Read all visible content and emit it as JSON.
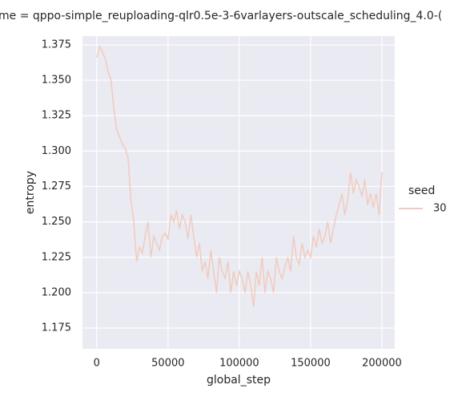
{
  "chart_data": {
    "type": "line",
    "title": "me = qppo-simple_reuploading-qlr0.5e-3-6varlayers-outscale_scheduling_4.0-(",
    "x_label": "global_step",
    "y_label": "entropy",
    "legend_title": "seed",
    "legend": "right",
    "grid": true,
    "x": [
      0,
      2000,
      4000,
      6000,
      8000,
      10000,
      12000,
      14000,
      16000,
      18000,
      20000,
      22000,
      24000,
      26000,
      28000,
      30000,
      32000,
      34000,
      36000,
      38000,
      40000,
      42000,
      44000,
      46000,
      48000,
      50000,
      52000,
      54000,
      56000,
      58000,
      60000,
      62000,
      64000,
      66000,
      68000,
      70000,
      72000,
      74000,
      76000,
      78000,
      80000,
      82000,
      84000,
      86000,
      88000,
      90000,
      92000,
      94000,
      96000,
      98000,
      100000,
      102000,
      104000,
      106000,
      108000,
      110000,
      112000,
      114000,
      116000,
      118000,
      120000,
      122000,
      124000,
      126000,
      128000,
      130000,
      132000,
      134000,
      136000,
      138000,
      140000,
      142000,
      144000,
      146000,
      148000,
      150000,
      152000,
      154000,
      156000,
      158000,
      160000,
      162000,
      164000,
      166000,
      168000,
      170000,
      172000,
      174000,
      176000,
      178000,
      180000,
      182000,
      184000,
      186000,
      188000,
      190000,
      192000,
      194000,
      196000,
      198000,
      200000
    ],
    "series": [
      {
        "name": "30",
        "color": "#f1cbbd",
        "values": [
          1.366,
          1.374,
          1.37,
          1.365,
          1.356,
          1.35,
          1.33,
          1.315,
          1.31,
          1.305,
          1.302,
          1.295,
          1.265,
          1.25,
          1.222,
          1.232,
          1.228,
          1.24,
          1.25,
          1.225,
          1.24,
          1.235,
          1.23,
          1.24,
          1.242,
          1.238,
          1.255,
          1.25,
          1.258,
          1.245,
          1.255,
          1.25,
          1.238,
          1.255,
          1.24,
          1.225,
          1.235,
          1.215,
          1.222,
          1.21,
          1.23,
          1.215,
          1.2,
          1.225,
          1.215,
          1.21,
          1.222,
          1.2,
          1.215,
          1.205,
          1.215,
          1.21,
          1.2,
          1.215,
          1.205,
          1.19,
          1.215,
          1.205,
          1.225,
          1.2,
          1.215,
          1.21,
          1.2,
          1.225,
          1.215,
          1.21,
          1.218,
          1.225,
          1.215,
          1.24,
          1.225,
          1.22,
          1.235,
          1.225,
          1.23,
          1.225,
          1.24,
          1.232,
          1.245,
          1.235,
          1.24,
          1.25,
          1.235,
          1.245,
          1.255,
          1.262,
          1.27,
          1.255,
          1.265,
          1.285,
          1.27,
          1.28,
          1.275,
          1.268,
          1.28,
          1.262,
          1.27,
          1.26,
          1.27,
          1.255,
          1.285
        ]
      }
    ],
    "xlim": [
      -10000,
      209000
    ],
    "xticks": [
      0,
      50000,
      100000,
      150000,
      200000
    ],
    "ylim": [
      1.1603,
      1.3812
    ],
    "yticks": [
      1.175,
      {
        "value": 1.2,
        "label": "1.200"
      },
      1.225,
      {
        "value": 1.25,
        "label": "1.250"
      },
      1.275,
      {
        "value": 1.3,
        "label": "1.300"
      },
      1.325,
      {
        "value": 1.35,
        "label": "1.350"
      },
      1.375
    ]
  }
}
